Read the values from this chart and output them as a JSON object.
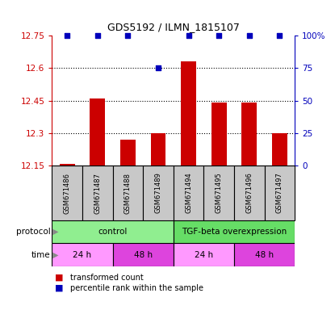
{
  "title": "GDS5192 / ILMN_1815107",
  "samples": [
    "GSM671486",
    "GSM671487",
    "GSM671488",
    "GSM671489",
    "GSM671494",
    "GSM671495",
    "GSM671496",
    "GSM671497"
  ],
  "red_values": [
    12.16,
    12.46,
    12.27,
    12.3,
    12.63,
    12.44,
    12.44,
    12.3
  ],
  "blue_values": [
    100,
    100,
    100,
    75,
    100,
    100,
    100,
    100
  ],
  "ylim": [
    12.15,
    12.75
  ],
  "yticks": [
    12.15,
    12.3,
    12.45,
    12.6,
    12.75
  ],
  "ytick_labels": [
    "12.15",
    "12.3",
    "12.45",
    "12.6",
    "12.75"
  ],
  "y2ticks": [
    0,
    25,
    50,
    75,
    100
  ],
  "y2tick_labels": [
    "0",
    "25",
    "50",
    "75",
    "100%"
  ],
  "gridlines": [
    12.3,
    12.45,
    12.6
  ],
  "prot_data": [
    {
      "label": "control",
      "start": 0,
      "end": 4,
      "color": "#90EE90"
    },
    {
      "label": "TGF-beta overexpression",
      "start": 4,
      "end": 8,
      "color": "#66DD66"
    }
  ],
  "time_data": [
    {
      "label": "24 h",
      "start": 0,
      "end": 2,
      "color": "#FF99FF"
    },
    {
      "label": "48 h",
      "start": 2,
      "end": 4,
      "color": "#DD44DD"
    },
    {
      "label": "24 h",
      "start": 4,
      "end": 6,
      "color": "#FF99FF"
    },
    {
      "label": "48 h",
      "start": 6,
      "end": 8,
      "color": "#DD44DD"
    }
  ],
  "bar_color": "#CC0000",
  "dot_color": "#0000BB",
  "left_label_color": "#CC0000",
  "right_label_color": "#0000BB",
  "sample_box_color": "#C8C8C8"
}
